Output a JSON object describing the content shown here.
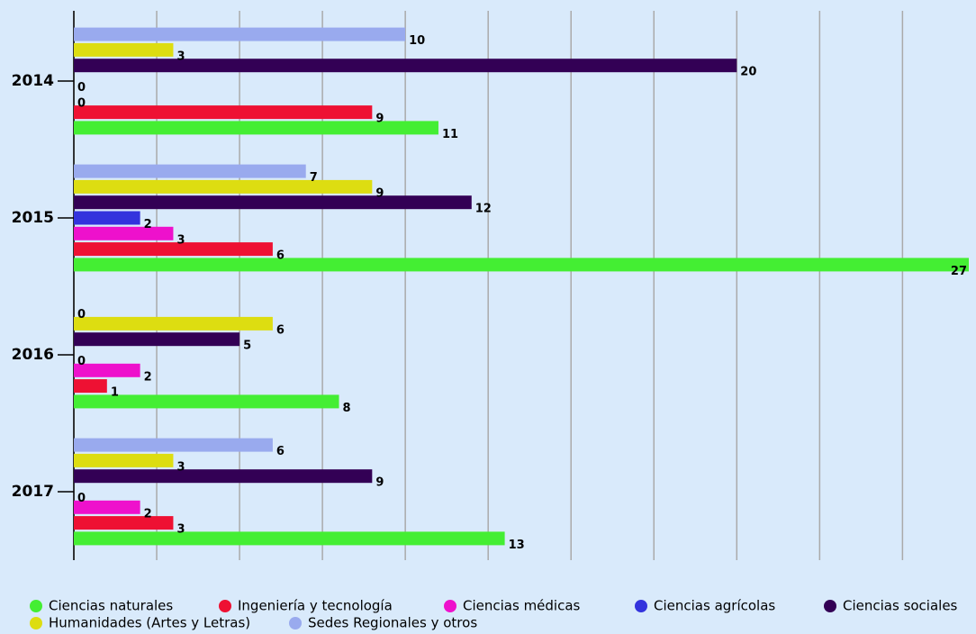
{
  "chart_data": {
    "type": "bar",
    "orientation": "horizontal",
    "categories": [
      "2014",
      "2015",
      "2016",
      "2017"
    ],
    "series": [
      {
        "name": "Ciencias naturales",
        "color": "#44ee33",
        "values": [
          11,
          27,
          8,
          13
        ]
      },
      {
        "name": "Ingeniería y tecnología",
        "color": "#ee1133",
        "values": [
          9,
          6,
          1,
          3
        ]
      },
      {
        "name": "Ciencias médicas",
        "color": "#ee11cc",
        "values": [
          0,
          3,
          2,
          2
        ]
      },
      {
        "name": "Ciencias agrícolas",
        "color": "#3333dd",
        "values": [
          0,
          2,
          0,
          0
        ]
      },
      {
        "name": "Ciencias sociales",
        "color": "#330055",
        "values": [
          20,
          12,
          5,
          9
        ]
      },
      {
        "name": "Humanidades (Artes y Letras)",
        "color": "#dddd11",
        "values": [
          3,
          9,
          6,
          3
        ]
      },
      {
        "name": "Sedes Regionales y otros",
        "color": "#99aaee",
        "values": [
          10,
          7,
          0,
          6
        ]
      }
    ],
    "xlim": [
      0,
      27
    ],
    "xticks": [
      0,
      2.5,
      5,
      7.5,
      10,
      12.5,
      15,
      17.5,
      20,
      22.5,
      25
    ],
    "grid": true,
    "legend": "bottom"
  }
}
